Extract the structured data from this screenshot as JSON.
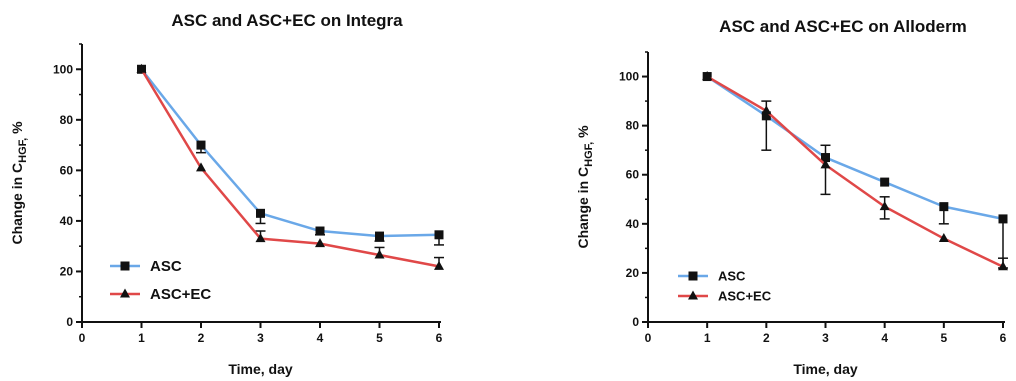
{
  "chart_data": [
    {
      "type": "line",
      "title": "ASC and ASC+EC on Integra",
      "xlabel": "Time, day",
      "ylabel": {
        "main": "Change in C",
        "sub": "HGF,",
        "unit": " %"
      },
      "xlim": [
        0,
        6
      ],
      "ylim": [
        0,
        110
      ],
      "xticks": [
        0,
        1,
        2,
        3,
        4,
        5,
        6
      ],
      "yticks": [
        0,
        20,
        40,
        60,
        80,
        100
      ],
      "grid": false,
      "legend": "bottom-left",
      "series": [
        {
          "name": "ASC",
          "color": "#6aa8e8",
          "marker": "square",
          "x": [
            1,
            2,
            3,
            4,
            5,
            6
          ],
          "y": [
            100,
            70,
            43,
            36,
            34,
            34.5
          ],
          "err_up": [
            0,
            0,
            0,
            0,
            0,
            0
          ],
          "err_down": [
            0,
            3,
            4,
            1.5,
            2,
            4
          ]
        },
        {
          "name": "ASC+EC",
          "color": "#e04848",
          "marker": "triangle",
          "x": [
            1,
            2,
            3,
            4,
            5,
            6
          ],
          "y": [
            100,
            61,
            33,
            31,
            26.5,
            22
          ],
          "err_up": [
            0,
            0,
            3,
            0,
            3,
            3.5
          ],
          "err_down": [
            0,
            0,
            0,
            0,
            0,
            0
          ]
        }
      ]
    },
    {
      "type": "line",
      "title": "ASC and ASC+EC on Alloderm",
      "xlabel": "Time, day",
      "ylabel": {
        "main": "Change in C",
        "sub": "HGF,",
        "unit": " %"
      },
      "xlim": [
        0,
        6
      ],
      "ylim": [
        0,
        110
      ],
      "xticks": [
        0,
        1,
        2,
        3,
        4,
        5,
        6
      ],
      "yticks": [
        0,
        20,
        40,
        60,
        80,
        100
      ],
      "grid": false,
      "legend": "bottom-left",
      "series": [
        {
          "name": "ASC",
          "color": "#6aa8e8",
          "marker": "square",
          "x": [
            1,
            2,
            3,
            4,
            5,
            6
          ],
          "y": [
            100,
            84,
            67,
            57,
            47,
            42
          ],
          "err_up": [
            0,
            6,
            5,
            0,
            0,
            0
          ],
          "err_down": [
            0,
            14,
            15,
            0,
            7,
            20
          ]
        },
        {
          "name": "ASC+EC",
          "color": "#e04848",
          "marker": "triangle",
          "x": [
            1,
            2,
            3,
            4,
            5,
            6
          ],
          "y": [
            100,
            86,
            64,
            47,
            34,
            22.5
          ],
          "err_up": [
            0,
            0,
            0,
            4,
            0,
            3.5
          ],
          "err_down": [
            0,
            0,
            0,
            5,
            0,
            0
          ]
        }
      ]
    }
  ]
}
